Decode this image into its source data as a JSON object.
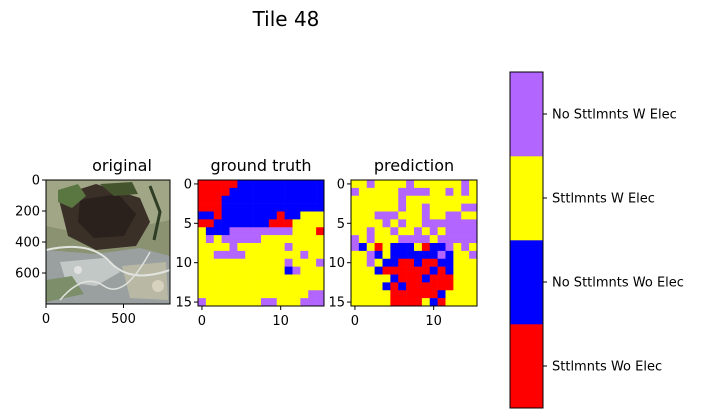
{
  "figure": {
    "title": "Tile 48"
  },
  "colors": {
    "Sttlmnts Wo Elec": "#ff0000",
    "No Sttlmnts Wo Elec": "#0000ff",
    "Sttlmnts W Elec": "#ffff00",
    "No Sttlmnts W Elec": "#b266ff"
  },
  "chart_data": [
    {
      "type": "image",
      "title": "original",
      "xticks": [
        "0",
        "500"
      ],
      "yticks": [
        "0",
        "200",
        "400",
        "600"
      ],
      "xlim": [
        0,
        800
      ],
      "ylim": [
        800,
        0
      ],
      "image_semantics": "satellite-rgb"
    },
    {
      "type": "heatmap",
      "title": "ground truth",
      "xticks": [
        "0",
        "10"
      ],
      "yticks": [
        "0",
        "5",
        "10",
        "15"
      ],
      "xlim": [
        -0.5,
        15.5
      ],
      "ylim": [
        15.5,
        -0.5
      ],
      "legend": [
        "R",
        "B",
        "Y",
        "P"
      ],
      "grid": [
        "RRRRRBBBBBBBBBBB",
        "RRRRBBBBBBBBBBBB",
        "RRRBBBBBBBBBBBBB",
        "RRRBBBBBBBBBBBBB",
        "BBRBBBBBBBRBBYYY",
        "RRBBBBBBBRRRYYYY",
        "YBBBPPPPPPPPYYYR",
        "YPYPPPPPYYYYYYYY",
        "YYYYPYYYYYYPYYYY",
        "YYPPPPYYYYYYYPYY",
        "YYYYYYYYYYYPYYYP",
        "YYYYYYYYYYYBPYYY",
        "YYYYYYYYYYYYYYYY",
        "YYYYYYYYYYYYYYYY",
        "YYYYYYYYYYYYYYPP",
        "PYYYYYYYPPYYYPPP"
      ]
    },
    {
      "type": "heatmap",
      "title": "prediction",
      "xticks": [
        "0",
        "10"
      ],
      "yticks": [
        "0",
        "5",
        "10",
        "15"
      ],
      "xlim": [
        -0.5,
        15.5
      ],
      "ylim": [
        15.5,
        -0.5
      ],
      "legend": [
        "R",
        "B",
        "Y",
        "P"
      ],
      "grid": [
        "YYPYYYYPYYYYYYPY",
        "PYYYYYPPPPYYPYPY",
        "YYYYYYPYYYYYYYYY",
        "YYYYYYPYYPYYYYPP",
        "YYYPPPYYYPYYPPYY",
        "YYYYPYPYYPPPPPPP",
        "YYPYYPYYPYPYPPPP",
        "PYPYYYPPPPYPPPPP",
        "PBYRYBBBYRBBPYPY",
        "YYPBYBBBBBBPBYYP",
        "YYPYBBRRBRRBBYYY",
        "YYYBRRRRRRBRBYYY",
        "YYYYYBRRRBRRRYYY",
        "YYYYBRBRRRRRRYYY",
        "YYYYYRRRRRRBYYYY",
        "YYYYYRRRRYBRYYYY"
      ]
    },
    {
      "type": "colorbar",
      "categories": [
        "Sttlmnts Wo Elec",
        "No Sttlmnts Wo Elec",
        "Sttlmnts W Elec",
        "No Sttlmnts W Elec"
      ],
      "legend_placement": "right",
      "order": "bottom-to-top"
    }
  ]
}
